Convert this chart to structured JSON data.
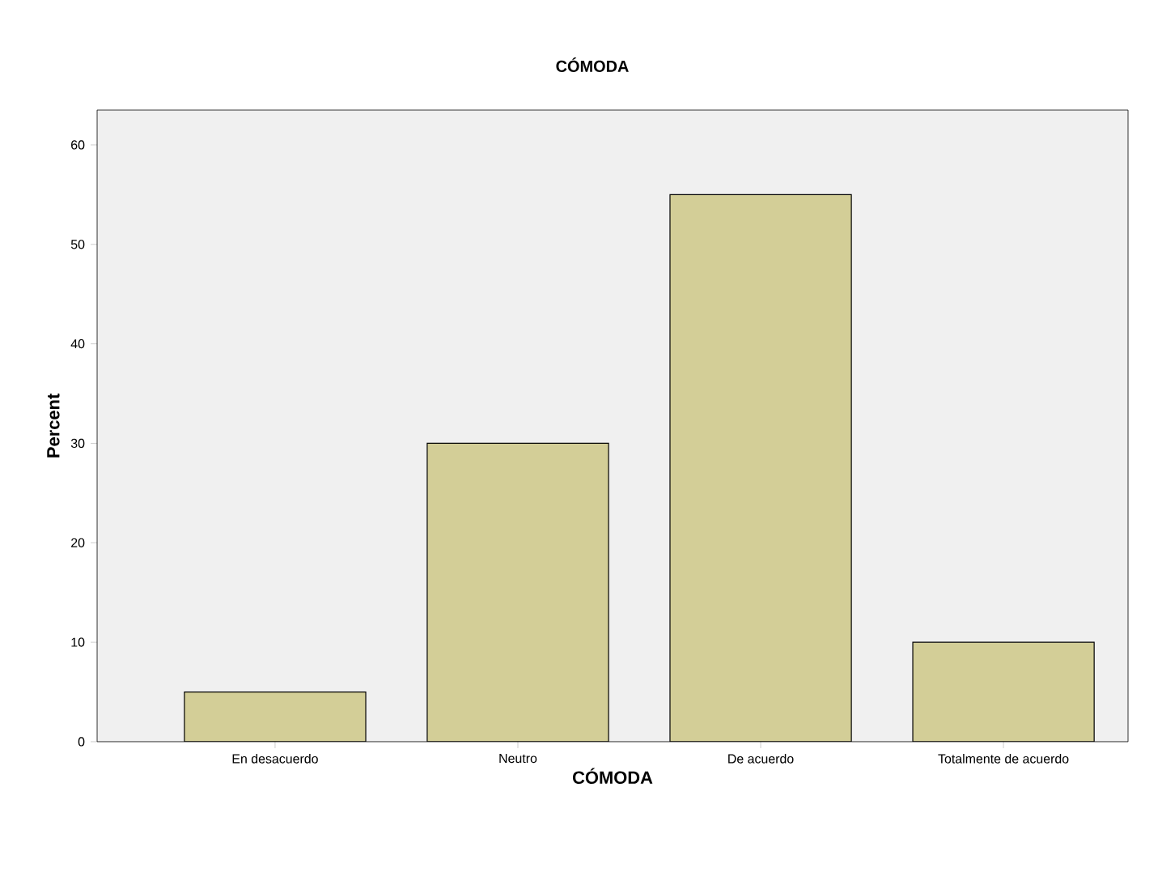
{
  "chart_data": {
    "type": "bar",
    "title": "CÓMODA",
    "xlabel": "CÓMODA",
    "ylabel": "Percent",
    "categories": [
      "En desacuerdo",
      "Neutro",
      "De acuerdo",
      "Totalmente de acuerdo"
    ],
    "values": [
      5,
      30,
      55,
      10
    ],
    "color": "#d3ce97",
    "ylim": [
      0,
      63.5
    ],
    "yticks": [
      0,
      10,
      20,
      30,
      40,
      50,
      60
    ],
    "grid": false
  }
}
